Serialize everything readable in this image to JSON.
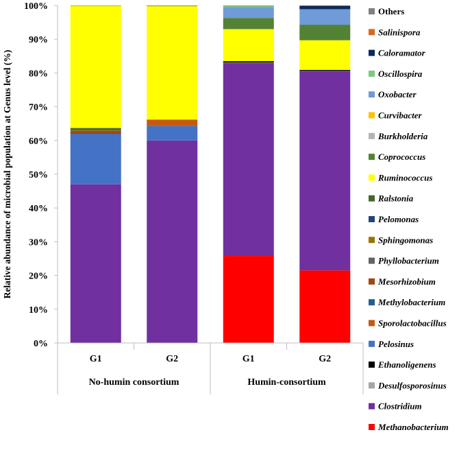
{
  "chart_data": {
    "type": "bar",
    "stacked": true,
    "ylabel": "Relative abundance of microbial population at Genus level (%)",
    "ylim": [
      0,
      100
    ],
    "yticks": [
      "0%",
      "10%",
      "20%",
      "30%",
      "40%",
      "50%",
      "60%",
      "70%",
      "80%",
      "90%",
      "100%"
    ],
    "groups": [
      {
        "label": "No-humin consortium",
        "categories": [
          "G1",
          "G2"
        ]
      },
      {
        "label": "Humin-consortium",
        "categories": [
          "G1",
          "G2"
        ]
      }
    ],
    "categories": [
      "G1",
      "G2",
      "G1",
      "G2"
    ],
    "series": [
      {
        "name": "Methanobacterium",
        "color": "#ff0000",
        "italic": true,
        "values": [
          0,
          0,
          25.8,
          21.5
        ]
      },
      {
        "name": "Clostridium",
        "color": "#7030a0",
        "italic": true,
        "values": [
          47.0,
          60.0,
          57.2,
          59.0
        ]
      },
      {
        "name": "Desulfosporosinus",
        "color": "#a5a5a5",
        "italic": true,
        "values": [
          0,
          0,
          0.1,
          0.1
        ]
      },
      {
        "name": "Ethanoligenens",
        "color": "#000000",
        "italic": true,
        "values": [
          0,
          0,
          0.4,
          0.3
        ]
      },
      {
        "name": "Pelosinus",
        "color": "#4472c4",
        "italic": true,
        "values": [
          15.0,
          4.3,
          0,
          0
        ]
      },
      {
        "name": "Sporolactobacillus",
        "color": "#c55a11",
        "italic": true,
        "values": [
          0,
          1.9,
          0,
          0
        ]
      },
      {
        "name": "Methylobacterium",
        "color": "#255e91",
        "italic": true,
        "values": [
          0.1,
          0,
          0,
          0
        ]
      },
      {
        "name": "Mesorhizobium",
        "color": "#9e480e",
        "italic": true,
        "values": [
          0.5,
          0,
          0,
          0
        ]
      },
      {
        "name": "Phyllobacterium",
        "color": "#636363",
        "italic": true,
        "values": [
          0.3,
          0,
          0,
          0
        ]
      },
      {
        "name": "Sphingomonas",
        "color": "#997300",
        "italic": true,
        "values": [
          0.3,
          0,
          0,
          0
        ]
      },
      {
        "name": "Pelomonas",
        "color": "#264478",
        "italic": true,
        "values": [
          0.1,
          0,
          0,
          0
        ]
      },
      {
        "name": "Ralstonia",
        "color": "#43682b",
        "italic": true,
        "values": [
          0.4,
          0,
          0,
          0
        ]
      },
      {
        "name": "Ruminococcus",
        "color": "#ffff00",
        "italic": true,
        "values": [
          36.2,
          33.6,
          9.5,
          8.8
        ]
      },
      {
        "name": "Coprococcus",
        "color": "#548235",
        "italic": true,
        "values": [
          0,
          0,
          3.3,
          4.6
        ]
      },
      {
        "name": "Burkholderia",
        "color": "#b4b4b4",
        "italic": true,
        "values": [
          0,
          0,
          0,
          0
        ]
      },
      {
        "name": "Curvibacter",
        "color": "#ffc000",
        "italic": true,
        "values": [
          0,
          0,
          0,
          0
        ]
      },
      {
        "name": "Oxobacter",
        "color": "#6f9bd8",
        "italic": true,
        "values": [
          0,
          0,
          3.2,
          4.6
        ]
      },
      {
        "name": "Oscillospira",
        "color": "#7fc97f",
        "italic": true,
        "values": [
          0,
          0,
          0.4,
          0
        ]
      },
      {
        "name": "Caloramator",
        "color": "#0d2a5c",
        "italic": true,
        "values": [
          0,
          0,
          0,
          1.0
        ]
      },
      {
        "name": "Salinispora",
        "color": "#d46a1e",
        "italic": true,
        "values": [
          0,
          0,
          0,
          0
        ]
      },
      {
        "name": "Others",
        "color": "#808080",
        "italic": false,
        "values": [
          0.1,
          0.2,
          0.1,
          0.1
        ]
      }
    ]
  }
}
